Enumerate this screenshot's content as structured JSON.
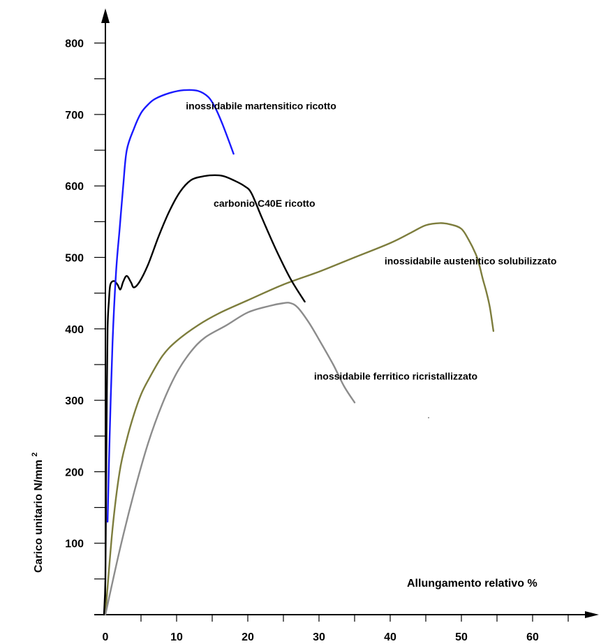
{
  "chart_data": {
    "type": "line",
    "title": "",
    "xlabel": "Allungamento relativo %",
    "ylabel_main": "Carico unitario N/mm",
    "ylabel_sup": "2",
    "xlim": [
      0,
      70
    ],
    "ylim": [
      0,
      850
    ],
    "x_ticks": [
      0,
      10,
      20,
      30,
      40,
      50,
      60
    ],
    "x_tick_labels": [
      "0",
      "10",
      "20",
      "30",
      "40",
      "50",
      "60"
    ],
    "y_ticks": [
      100,
      200,
      300,
      400,
      500,
      600,
      700,
      800
    ],
    "y_tick_labels": [
      "100",
      "200",
      "300",
      "400",
      "500",
      "600",
      "700",
      "800"
    ],
    "grid": false,
    "legend": "none",
    "series": [
      {
        "name": "inossidabile martensitico ricotto",
        "color": "#1a1aff",
        "points": [
          [
            0.3,
            130
          ],
          [
            0.6,
            250
          ],
          [
            1,
            380
          ],
          [
            1.5,
            480
          ],
          [
            2,
            540
          ],
          [
            2.5,
            600
          ],
          [
            3,
            650
          ],
          [
            4,
            680
          ],
          [
            5,
            702
          ],
          [
            6,
            714
          ],
          [
            7,
            722
          ],
          [
            9,
            730
          ],
          [
            11,
            734
          ],
          [
            13,
            733
          ],
          [
            14.5,
            724
          ],
          [
            15.5,
            708
          ],
          [
            16.5,
            685
          ],
          [
            18,
            645
          ]
        ]
      },
      {
        "name": "carbonio C40E ricotto",
        "color": "#000000",
        "points": [
          [
            -0.2,
            0
          ],
          [
            0,
            50
          ],
          [
            0.1,
            180
          ],
          [
            0.2,
            300
          ],
          [
            0.3,
            400
          ],
          [
            0.5,
            440
          ],
          [
            0.7,
            462
          ],
          [
            1.2,
            467
          ],
          [
            1.7,
            462
          ],
          [
            2.1,
            455
          ],
          [
            2.5,
            466
          ],
          [
            3,
            474
          ],
          [
            3.6,
            465
          ],
          [
            4,
            458
          ],
          [
            4.8,
            466
          ],
          [
            6,
            490
          ],
          [
            7.5,
            530
          ],
          [
            9,
            565
          ],
          [
            10.5,
            592
          ],
          [
            12,
            608
          ],
          [
            13.5,
            613
          ],
          [
            15,
            615
          ],
          [
            16.5,
            614
          ],
          [
            18,
            608
          ],
          [
            19.5,
            600
          ],
          [
            20.5,
            590
          ],
          [
            22,
            555
          ],
          [
            24,
            510
          ],
          [
            26,
            470
          ],
          [
            28,
            438
          ]
        ]
      },
      {
        "name": "inossidabile austenitico solubilizzato",
        "color": "#7d7d3d",
        "points": [
          [
            0,
            0
          ],
          [
            1,
            120
          ],
          [
            2,
            200
          ],
          [
            3,
            245
          ],
          [
            4,
            280
          ],
          [
            5,
            308
          ],
          [
            6,
            328
          ],
          [
            8,
            362
          ],
          [
            10,
            383
          ],
          [
            13,
            405
          ],
          [
            16,
            422
          ],
          [
            20,
            440
          ],
          [
            25,
            462
          ],
          [
            30,
            480
          ],
          [
            35,
            500
          ],
          [
            40,
            520
          ],
          [
            43,
            535
          ],
          [
            45,
            545
          ],
          [
            47,
            548
          ],
          [
            48.5,
            546
          ],
          [
            50,
            540
          ],
          [
            51,
            525
          ],
          [
            52,
            505
          ],
          [
            52.5,
            490
          ],
          [
            53,
            470
          ],
          [
            53.5,
            452
          ],
          [
            54,
            430
          ],
          [
            54.5,
            397
          ]
        ]
      },
      {
        "name": "inossidabile ferritico ricristallizzato",
        "color": "#8c8c8c",
        "points": [
          [
            0,
            0
          ],
          [
            2,
            90
          ],
          [
            4,
            170
          ],
          [
            6,
            240
          ],
          [
            8,
            295
          ],
          [
            10,
            338
          ],
          [
            12,
            368
          ],
          [
            14,
            388
          ],
          [
            17,
            405
          ],
          [
            20,
            423
          ],
          [
            23,
            432
          ],
          [
            25,
            436
          ],
          [
            26,
            436
          ],
          [
            27,
            430
          ],
          [
            28.5,
            410
          ],
          [
            30,
            385
          ],
          [
            32,
            350
          ],
          [
            33.5,
            320
          ],
          [
            35,
            297
          ]
        ]
      }
    ],
    "annotations": [
      {
        "text": "inossidabile martensitico ricotto",
        "x": 11.3,
        "y": 707
      },
      {
        "text": "carbonio C40E ricotto",
        "x": 15.2,
        "y": 571
      },
      {
        "text": "inossidabile austenitico solubilizzato",
        "x": 39.2,
        "y": 490
      },
      {
        "text": "inossidabile ferritico ricristallizzato",
        "x": 29.3,
        "y": 329
      }
    ]
  }
}
